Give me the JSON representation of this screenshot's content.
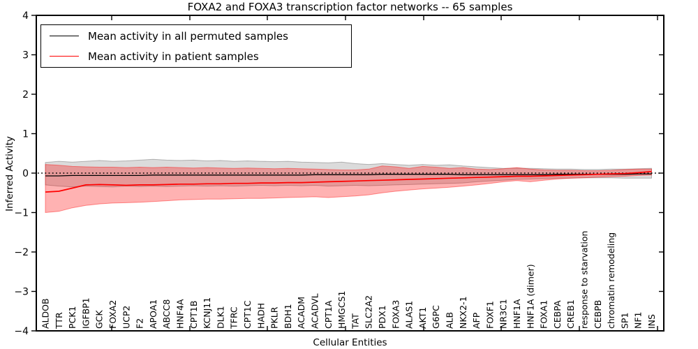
{
  "title": "FOXA2 and FOXA3 transcription factor networks -- 65 samples",
  "chart_data": {
    "type": "line",
    "title": "FOXA2 and FOXA3 transcription factor networks -- 65 samples",
    "xlabel": "Cellular Entities",
    "ylabel": "Inferred Activity",
    "ylim": [
      -4,
      4
    ],
    "yticks": [
      4,
      3,
      2,
      1,
      0,
      -1,
      -2,
      -3,
      -4
    ],
    "grid": false,
    "legend_position": "upper left",
    "reference_line": {
      "y": 0,
      "style": "dotted",
      "color": "#000000"
    },
    "categories": [
      "ALDOB",
      "TTR",
      "PCK1",
      "IGFBP1",
      "GCK",
      "FOXA2",
      "UCP2",
      "F2",
      "APOA1",
      "ABCC8",
      "HNF4A",
      "CPT1B",
      "KCNJ11",
      "DLK1",
      "TFRC",
      "CPT1C",
      "HADH",
      "PKLR",
      "BDH1",
      "ACADM",
      "ACADVL",
      "CPT1A",
      "HMGCS1",
      "TAT",
      "SLC2A2",
      "PDX1",
      "FOXA3",
      "ALAS1",
      "AKT1",
      "G6PC",
      "ALB",
      "NKX2-1",
      "AFP",
      "FOXF1",
      "NR3C1",
      "HNF1A",
      "HNF1A (dimer)",
      "FOXA1",
      "CEBPA",
      "CREB1",
      "response to starvation",
      "CEBPB",
      "chromatin remodeling",
      "SP1",
      "NF1",
      "INS"
    ],
    "series": [
      {
        "name": "Mean activity in all permuted samples",
        "color": "#000000",
        "values": [
          -0.07,
          -0.07,
          -0.06,
          -0.06,
          -0.06,
          -0.06,
          -0.06,
          -0.06,
          -0.05,
          -0.05,
          -0.05,
          -0.05,
          -0.05,
          -0.05,
          -0.05,
          -0.05,
          -0.05,
          -0.05,
          -0.05,
          -0.05,
          -0.04,
          -0.04,
          -0.04,
          -0.04,
          -0.04,
          -0.03,
          -0.03,
          -0.03,
          -0.03,
          -0.03,
          -0.03,
          -0.04,
          -0.04,
          -0.04,
          -0.04,
          -0.04,
          -0.04,
          -0.04,
          -0.03,
          -0.03,
          -0.03,
          -0.03,
          -0.03,
          -0.03,
          -0.02,
          -0.02
        ]
      },
      {
        "name": "Mean activity in patient samples",
        "color": "#ff0000",
        "values": [
          -0.48,
          -0.46,
          -0.38,
          -0.3,
          -0.29,
          -0.3,
          -0.31,
          -0.3,
          -0.3,
          -0.29,
          -0.28,
          -0.28,
          -0.27,
          -0.27,
          -0.26,
          -0.26,
          -0.25,
          -0.25,
          -0.24,
          -0.24,
          -0.23,
          -0.22,
          -0.21,
          -0.2,
          -0.19,
          -0.18,
          -0.17,
          -0.16,
          -0.15,
          -0.14,
          -0.13,
          -0.12,
          -0.11,
          -0.1,
          -0.09,
          -0.08,
          -0.08,
          -0.07,
          -0.06,
          -0.05,
          -0.04,
          -0.03,
          -0.02,
          -0.01,
          0.01,
          0.04
        ]
      }
    ],
    "bands": [
      {
        "name": "permuted-samples-range",
        "color": "#000000",
        "opacity": 0.14,
        "upper": [
          0.27,
          0.3,
          0.28,
          0.3,
          0.32,
          0.3,
          0.31,
          0.33,
          0.35,
          0.33,
          0.32,
          0.33,
          0.31,
          0.32,
          0.3,
          0.31,
          0.3,
          0.29,
          0.3,
          0.28,
          0.27,
          0.26,
          0.28,
          0.24,
          0.22,
          0.24,
          0.22,
          0.2,
          0.22,
          0.2,
          0.21,
          0.18,
          0.16,
          0.14,
          0.12,
          0.13,
          0.12,
          0.11,
          0.1,
          0.1,
          0.09,
          0.09,
          0.1,
          0.1,
          0.11,
          0.12
        ],
        "lower": [
          -0.3,
          -0.33,
          -0.35,
          -0.33,
          -0.34,
          -0.35,
          -0.33,
          -0.34,
          -0.33,
          -0.34,
          -0.33,
          -0.32,
          -0.33,
          -0.32,
          -0.33,
          -0.32,
          -0.31,
          -0.32,
          -0.31,
          -0.32,
          -0.31,
          -0.33,
          -0.32,
          -0.31,
          -0.32,
          -0.31,
          -0.3,
          -0.29,
          -0.28,
          -0.27,
          -0.26,
          -0.25,
          -0.22,
          -0.2,
          -0.18,
          -0.16,
          -0.15,
          -0.14,
          -0.13,
          -0.13,
          -0.12,
          -0.12,
          -0.12,
          -0.13,
          -0.13,
          -0.13
        ]
      },
      {
        "name": "patient-samples-range",
        "color": "#ff0000",
        "opacity": 0.3,
        "upper": [
          0.22,
          0.2,
          0.17,
          0.16,
          0.15,
          0.15,
          0.14,
          0.15,
          0.14,
          0.15,
          0.14,
          0.13,
          0.14,
          0.13,
          0.12,
          0.13,
          0.12,
          0.11,
          0.12,
          0.11,
          0.1,
          0.09,
          0.08,
          0.08,
          0.1,
          0.18,
          0.16,
          0.12,
          0.17,
          0.15,
          0.12,
          0.14,
          0.1,
          0.09,
          0.11,
          0.14,
          0.1,
          0.08,
          0.07,
          0.07,
          0.06,
          0.06,
          0.07,
          0.09,
          0.1,
          0.1
        ],
        "lower": [
          -1.0,
          -0.97,
          -0.88,
          -0.82,
          -0.78,
          -0.76,
          -0.75,
          -0.74,
          -0.72,
          -0.7,
          -0.68,
          -0.67,
          -0.66,
          -0.66,
          -0.65,
          -0.64,
          -0.64,
          -0.63,
          -0.62,
          -0.61,
          -0.6,
          -0.62,
          -0.6,
          -0.58,
          -0.55,
          -0.5,
          -0.46,
          -0.43,
          -0.4,
          -0.38,
          -0.36,
          -0.33,
          -0.3,
          -0.26,
          -0.22,
          -0.19,
          -0.22,
          -0.18,
          -0.15,
          -0.13,
          -0.12,
          -0.1,
          -0.09,
          -0.08,
          -0.06,
          -0.05
        ]
      }
    ]
  }
}
